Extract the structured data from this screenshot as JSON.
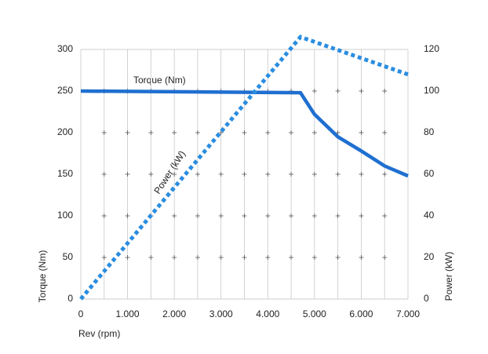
{
  "chart_data": {
    "type": "line",
    "x_label": "Rev (rpm)",
    "y_label": "Torque (Nm)",
    "y2_label": "Power (kW)",
    "annotations": [
      "Torque (Nm)",
      "Power (kW)"
    ],
    "xlim": [
      0,
      7000
    ],
    "xticks": [
      0,
      {
        "value": 1000,
        "label": "1.000"
      },
      {
        "value": 2000,
        "label": "2.000"
      },
      {
        "value": 3000,
        "label": "3.000"
      },
      {
        "value": 4000,
        "label": "4.000"
      },
      {
        "value": 5000,
        "label": "5.000"
      },
      {
        "value": 6000,
        "label": "6.000"
      },
      {
        "value": 7000,
        "label": "7.000"
      }
    ],
    "xgrid": [
      0,
      500,
      1000,
      1500,
      2000,
      2500,
      3000,
      3500,
      4000,
      4500,
      5000,
      5500,
      6000,
      6500,
      7000
    ],
    "ylim": [
      0,
      300
    ],
    "yticks": [
      0,
      50,
      100,
      150,
      200,
      250,
      300
    ],
    "y2lim": [
      0,
      120
    ],
    "y2ticks": [
      0,
      20,
      40,
      60,
      80,
      100,
      120
    ],
    "grid": true,
    "series": [
      {
        "name": "Torque (Nm)",
        "color": "#1f6fd0",
        "dashed": false,
        "x": [
          0,
          4700,
          5000,
          5500,
          6000,
          6500,
          7000
        ],
        "values": [
          250,
          248,
          222,
          195,
          178,
          160,
          148
        ]
      },
      {
        "name": "Power (kW)",
        "color": "#2a8de0",
        "dashed": true,
        "axis": "y2",
        "x": [
          0,
          4700,
          7000
        ],
        "values": [
          0,
          126,
          108
        ]
      }
    ]
  }
}
